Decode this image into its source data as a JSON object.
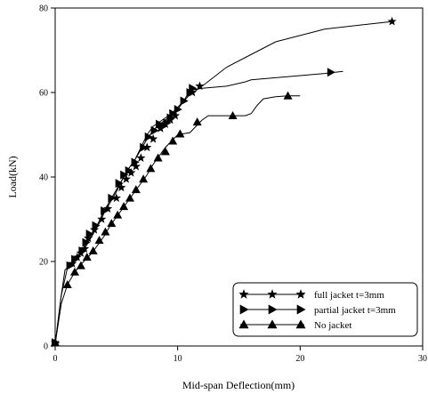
{
  "chart_data": {
    "type": "line",
    "xlabel": "Mid-span Deflection(mm)",
    "ylabel": "Load(kN)",
    "xlim": [
      0,
      30
    ],
    "ylim": [
      0,
      80
    ],
    "xticks": [
      0,
      10,
      20,
      30
    ],
    "yticks": [
      0,
      20,
      40,
      60,
      80
    ],
    "grid": false,
    "legend": "bottom-right",
    "series": [
      {
        "name": "full jacket t=3mm",
        "marker": "star",
        "line": [
          [
            0,
            0.5
          ],
          [
            0.5,
            12
          ],
          [
            1,
            18.5
          ],
          [
            1.5,
            20
          ],
          [
            2,
            21.5
          ],
          [
            2.5,
            23.5
          ],
          [
            3,
            26
          ],
          [
            3.5,
            28.5
          ],
          [
            4,
            31.5
          ],
          [
            4.5,
            34
          ],
          [
            5,
            36.5
          ],
          [
            5.5,
            39.5
          ],
          [
            6,
            42
          ],
          [
            6.5,
            44
          ],
          [
            7,
            47
          ],
          [
            7.5,
            50
          ],
          [
            8,
            52
          ],
          [
            8.5,
            53
          ],
          [
            9,
            54
          ],
          [
            9.5,
            55
          ],
          [
            10,
            56.5
          ],
          [
            10.5,
            58
          ],
          [
            11,
            59.5
          ],
          [
            12,
            61.5
          ],
          [
            14,
            66
          ],
          [
            16,
            69
          ],
          [
            18,
            72
          ],
          [
            20,
            73.5
          ],
          [
            22,
            75
          ],
          [
            25,
            76
          ],
          [
            27.5,
            76.8
          ]
        ],
        "markers": [
          [
            0,
            0.8
          ],
          [
            1.4,
            19.5
          ],
          [
            1.8,
            21
          ],
          [
            2.1,
            22
          ],
          [
            2.4,
            23
          ],
          [
            2.7,
            25.5
          ],
          [
            3.2,
            27.5
          ],
          [
            3.8,
            30
          ],
          [
            4.3,
            32.5
          ],
          [
            5,
            35
          ],
          [
            5.4,
            37.5
          ],
          [
            5.8,
            39.5
          ],
          [
            6.2,
            41
          ],
          [
            6.6,
            42.5
          ],
          [
            7,
            44.5
          ],
          [
            7.5,
            47
          ],
          [
            8,
            49
          ],
          [
            8.6,
            51.5
          ],
          [
            9,
            52.5
          ],
          [
            9.4,
            53.5
          ],
          [
            9.8,
            54.5
          ],
          [
            11.2,
            60
          ],
          [
            11.8,
            61.5
          ],
          [
            27.5,
            76.8
          ]
        ]
      },
      {
        "name": "partial jacket t=3mm",
        "marker": "triangle-right",
        "line": [
          [
            0,
            0.5
          ],
          [
            0.5,
            12
          ],
          [
            0.8,
            18
          ],
          [
            1.2,
            19
          ],
          [
            1.8,
            21
          ],
          [
            2.5,
            24
          ],
          [
            3,
            26.5
          ],
          [
            3.5,
            29
          ],
          [
            4,
            32
          ],
          [
            4.5,
            34.5
          ],
          [
            5,
            37
          ],
          [
            5.5,
            39.5
          ],
          [
            6,
            42
          ],
          [
            6.5,
            44
          ],
          [
            7,
            46.5
          ],
          [
            7.5,
            49
          ],
          [
            8,
            51
          ],
          [
            8.5,
            52.5
          ],
          [
            9,
            53.5
          ],
          [
            9.5,
            54.5
          ],
          [
            10,
            56
          ],
          [
            10.5,
            58
          ],
          [
            11,
            60.5
          ],
          [
            12,
            61
          ],
          [
            14,
            61.5
          ],
          [
            15.5,
            62.5
          ],
          [
            16,
            63
          ],
          [
            20,
            64
          ],
          [
            22,
            64.5
          ],
          [
            23.5,
            65
          ]
        ],
        "markers": [
          [
            0,
            0.8
          ],
          [
            1.2,
            19
          ],
          [
            1.6,
            20.5
          ],
          [
            2.2,
            22.5
          ],
          [
            2.5,
            24.5
          ],
          [
            2.8,
            26.5
          ],
          [
            3.3,
            28.5
          ],
          [
            4,
            32
          ],
          [
            4.6,
            35
          ],
          [
            5.2,
            38.5
          ],
          [
            5.6,
            40.5
          ],
          [
            6,
            41.5
          ],
          [
            6.5,
            43.5
          ],
          [
            7.2,
            47
          ],
          [
            7.6,
            49.5
          ],
          [
            8.1,
            51
          ],
          [
            8.5,
            52.5
          ],
          [
            8.8,
            52
          ],
          [
            9.1,
            52.8
          ],
          [
            9.4,
            54
          ],
          [
            9.6,
            55
          ],
          [
            10,
            56
          ],
          [
            10.5,
            58
          ],
          [
            11,
            60
          ],
          [
            11.2,
            61
          ],
          [
            22.5,
            64.8
          ]
        ]
      },
      {
        "name": "No jacket",
        "marker": "triangle-up",
        "line": [
          [
            0,
            0.5
          ],
          [
            0.5,
            10
          ],
          [
            1,
            14.5
          ],
          [
            1.5,
            17
          ],
          [
            2,
            19
          ],
          [
            2.5,
            20.5
          ],
          [
            3,
            22
          ],
          [
            3.5,
            24
          ],
          [
            4,
            26
          ],
          [
            4.5,
            28.5
          ],
          [
            5,
            30.5
          ],
          [
            5.5,
            32.5
          ],
          [
            6,
            34.5
          ],
          [
            6.5,
            36.5
          ],
          [
            7,
            38.5
          ],
          [
            7.5,
            40.5
          ],
          [
            8,
            43
          ],
          [
            8.5,
            45
          ],
          [
            9,
            47
          ],
          [
            9.5,
            48.5
          ],
          [
            10,
            50
          ],
          [
            11,
            50.5
          ],
          [
            11.5,
            52
          ],
          [
            12,
            53.5
          ],
          [
            12.5,
            54.5
          ],
          [
            14,
            54.5
          ],
          [
            15.5,
            54.5
          ],
          [
            16,
            55
          ],
          [
            16.5,
            57
          ],
          [
            17,
            58.5
          ],
          [
            18,
            59
          ],
          [
            19,
            59.2
          ],
          [
            20,
            59.2
          ]
        ],
        "markers": [
          [
            0,
            0.8
          ],
          [
            1,
            14.5
          ],
          [
            1.6,
            17.5
          ],
          [
            2.1,
            19
          ],
          [
            2.6,
            21
          ],
          [
            3.1,
            22.5
          ],
          [
            3.6,
            25
          ],
          [
            4.1,
            27
          ],
          [
            4.6,
            29
          ],
          [
            5.1,
            31
          ],
          [
            5.6,
            33
          ],
          [
            6.1,
            35
          ],
          [
            6.6,
            37
          ],
          [
            7.2,
            39.5
          ],
          [
            7.8,
            42
          ],
          [
            8.4,
            44.5
          ],
          [
            9,
            46
          ],
          [
            9.6,
            48.5
          ],
          [
            10.2,
            50.2
          ],
          [
            11.6,
            53
          ],
          [
            14.5,
            54.5
          ],
          [
            19,
            59.2
          ]
        ]
      }
    ]
  }
}
